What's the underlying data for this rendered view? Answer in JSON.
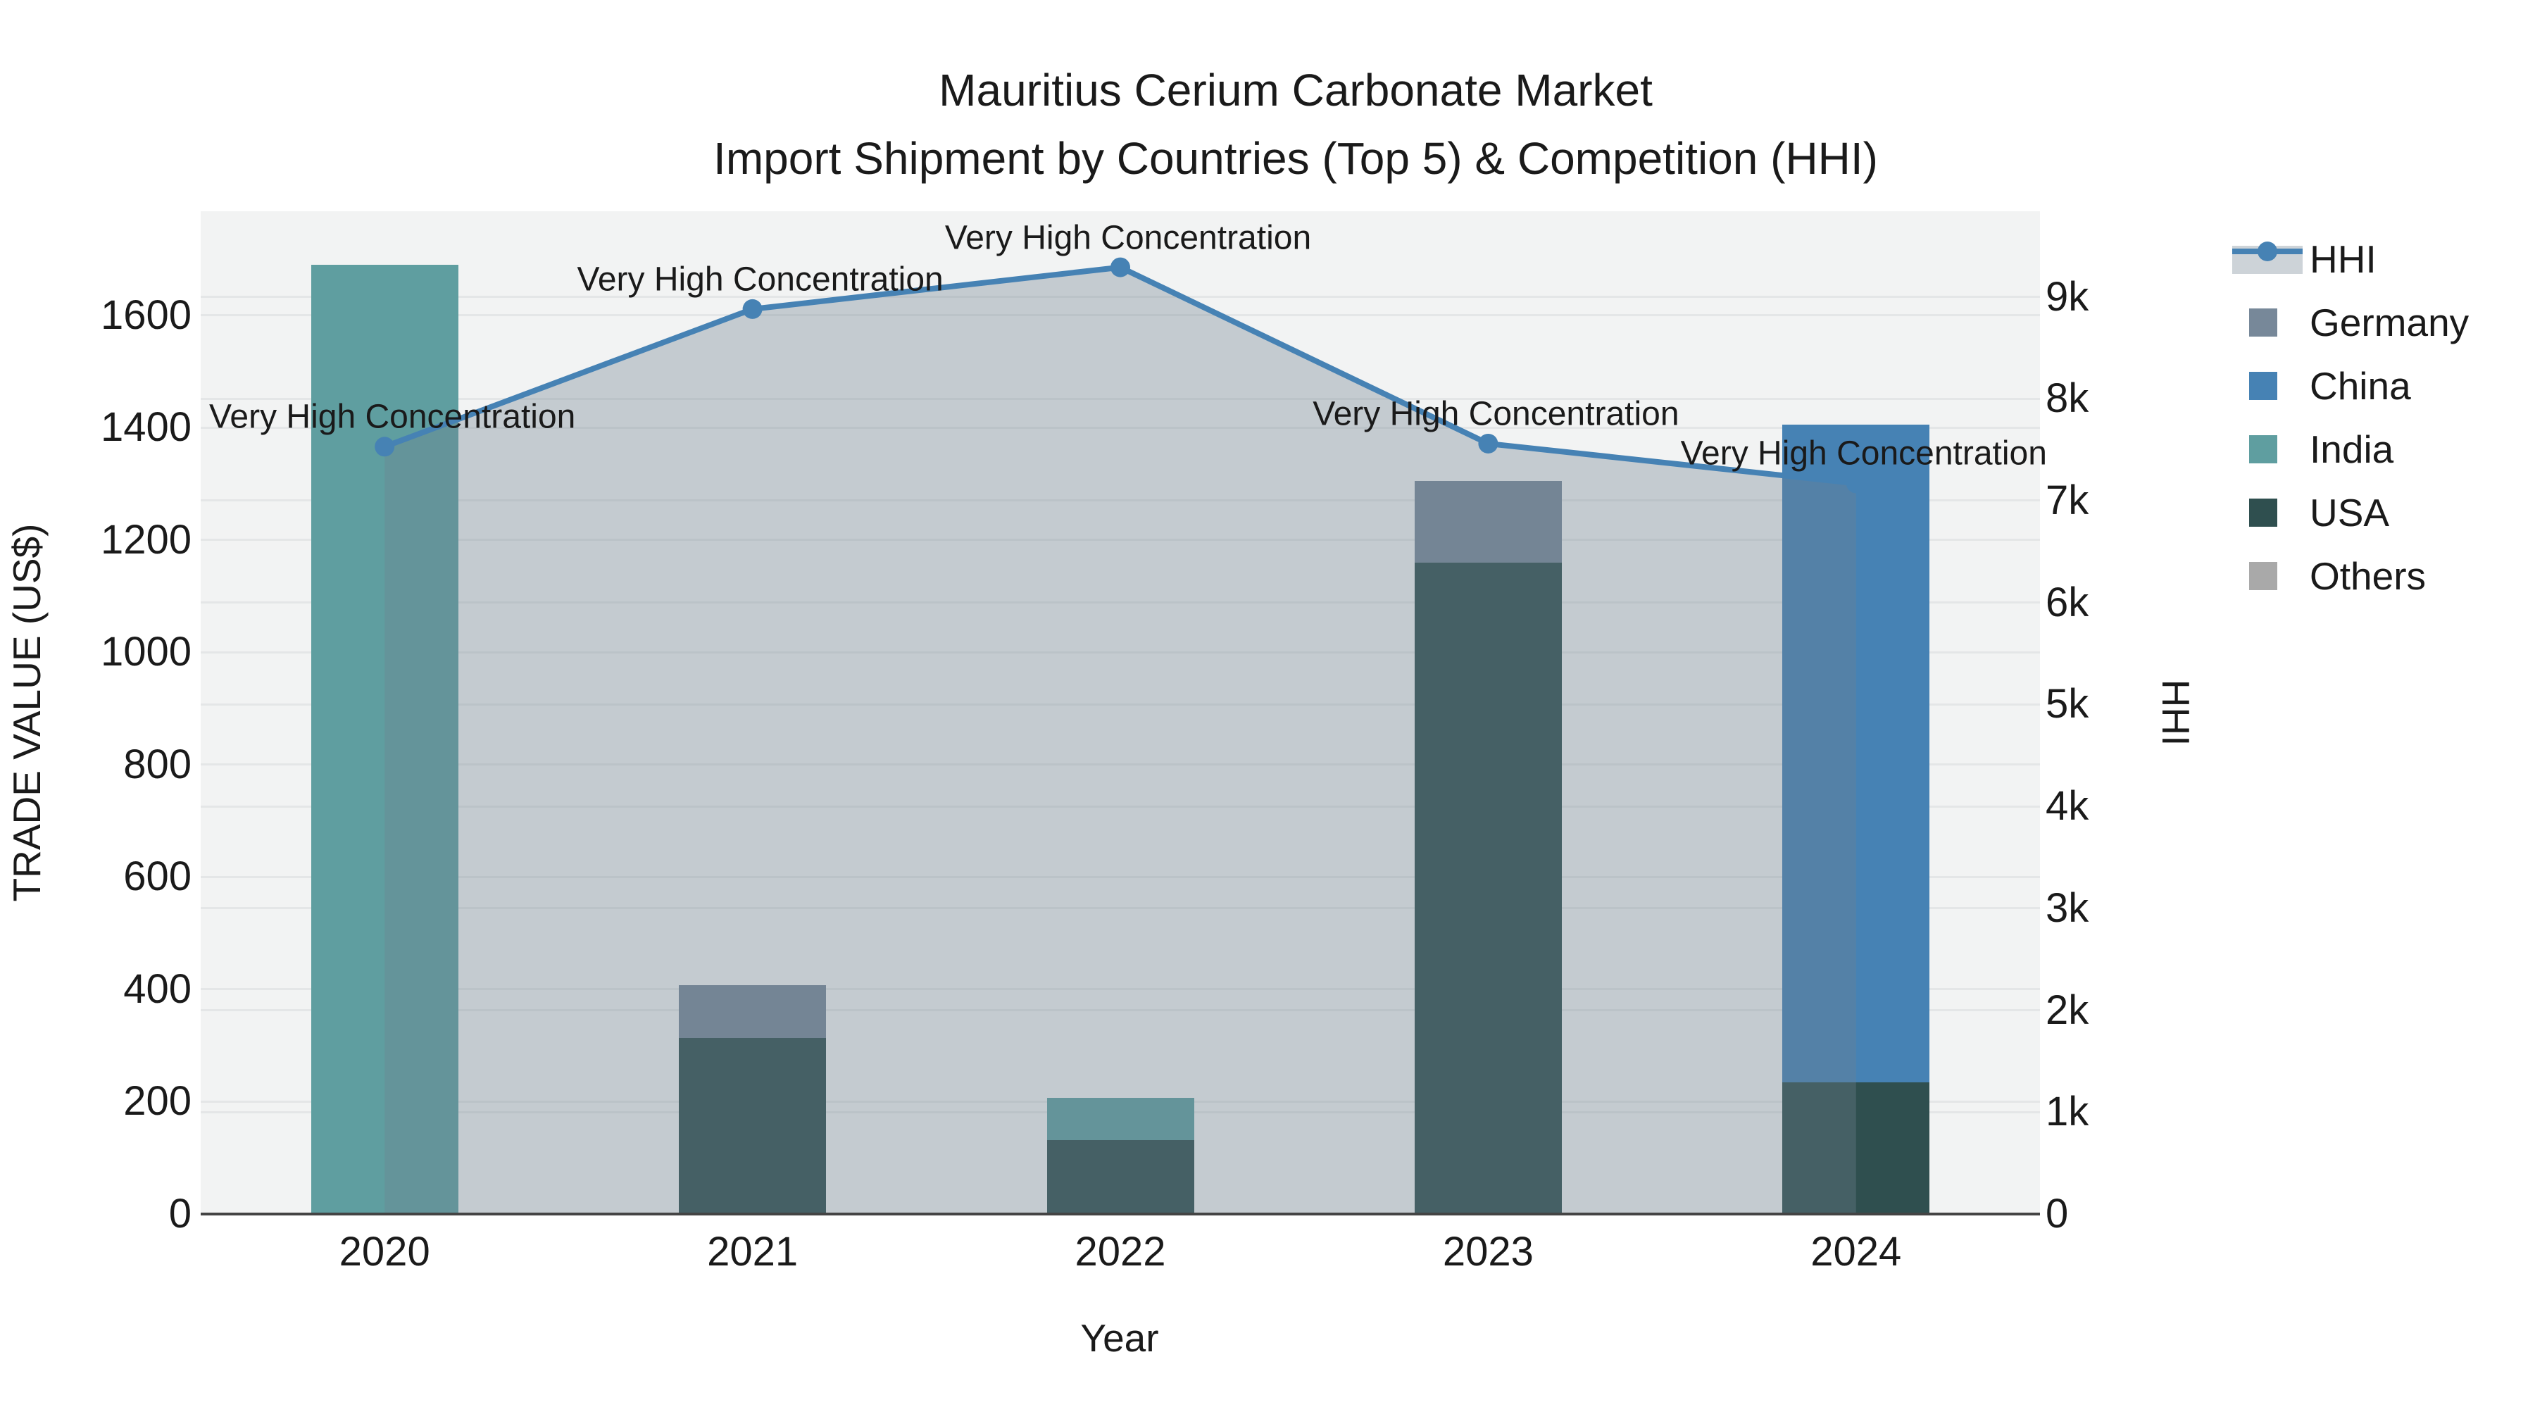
{
  "title": {
    "line1": "Mauritius Cerium Carbonate Market",
    "line2": "Import Shipment by Countries (Top 5) & Competition (HHI)"
  },
  "x_axis": {
    "title": "Year",
    "categories": [
      "2020",
      "2021",
      "2022",
      "2023",
      "2024"
    ]
  },
  "y_left": {
    "title": "TRADE VALUE (US$)",
    "ticks": [
      "0",
      "200",
      "400",
      "600",
      "800",
      "1000",
      "1200",
      "1400",
      "1600"
    ]
  },
  "y_right": {
    "title": "HHI",
    "ticks": [
      "0",
      "1k",
      "2k",
      "3k",
      "4k",
      "5k",
      "6k",
      "7k",
      "8k",
      "9k"
    ]
  },
  "legend": [
    {
      "label": "HHI",
      "type": "line"
    },
    {
      "label": "Germany",
      "type": "swatch",
      "color": "#778899"
    },
    {
      "label": "China",
      "type": "swatch",
      "color": "#4682B4"
    },
    {
      "label": "India",
      "type": "swatch",
      "color": "#5F9EA0"
    },
    {
      "label": "USA",
      "type": "swatch",
      "color": "#2F4F4F"
    },
    {
      "label": "Others",
      "type": "swatch",
      "color": "#A9A9A9"
    }
  ],
  "colors": {
    "hhi_line": "#4682B4",
    "hhi_fill": "rgba(112,128,144,0.35)",
    "plot_bg": "#f2f3f3",
    "gridline": "#e4e6e7",
    "axis_line": "#444444",
    "text": "#1a1a1a"
  },
  "chart_data": {
    "type": "bar+line",
    "title": "Mauritius Cerium Carbonate Market — Import Shipment by Countries (Top 5) & Competition (HHI)",
    "categories": [
      "2020",
      "2021",
      "2022",
      "2023",
      "2024"
    ],
    "bar_series": [
      {
        "name": "Germany",
        "color": "#778899",
        "values": [
          0,
          94,
          0,
          145,
          0
        ]
      },
      {
        "name": "China",
        "color": "#4682B4",
        "values": [
          0,
          0,
          0,
          0,
          1171
        ]
      },
      {
        "name": "India",
        "color": "#5F9EA0",
        "values": [
          1690,
          0,
          75,
          0,
          0
        ]
      },
      {
        "name": "USA",
        "color": "#2F4F4F",
        "values": [
          0,
          313,
          132,
          1160,
          234
        ]
      },
      {
        "name": "Others",
        "color": "#A9A9A9",
        "values": [
          0,
          0,
          0,
          0,
          0
        ]
      }
    ],
    "stack_order": [
      "USA",
      "India",
      "China",
      "Germany",
      "Others"
    ],
    "line_series": {
      "name": "HHI",
      "values": [
        7530,
        8880,
        9290,
        7560,
        7170
      ],
      "axis": "right"
    },
    "point_annotations": [
      "Very High Concentration",
      "Very High Concentration",
      "Very High Concentration",
      "Very High Concentration",
      "Very High Concentration"
    ],
    "xlabel": "Year",
    "ylabel_left": "TRADE VALUE (US$)",
    "ylabel_right": "HHI",
    "y_left_range": [
      0,
      1785
    ],
    "y_right_range": [
      0,
      9840
    ],
    "y_left_tick_step": 200,
    "y_right_tick_step": 1000,
    "grid": true,
    "legend_position": "right"
  }
}
